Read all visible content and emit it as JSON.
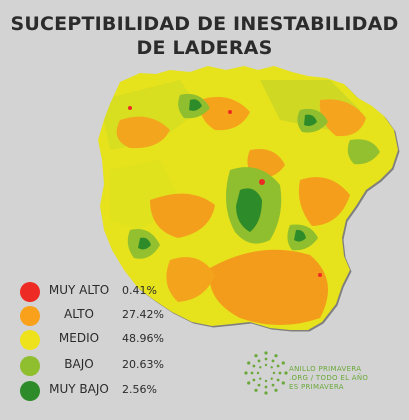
{
  "title": {
    "line1": "SUCEPTIBILIDAD DE INESTABILIDAD",
    "line2": "DE LADERAS"
  },
  "legend": [
    {
      "label": "MUY ALTO",
      "percent": "0.41%",
      "color": "#ee2a24"
    },
    {
      "label": "ALTO",
      "percent": "27.42%",
      "color": "#f9a11b"
    },
    {
      "label": "MEDIO",
      "percent": "48.96%",
      "color": "#ede21c"
    },
    {
      "label": "BAJO",
      "percent": "20.63%",
      "color": "#8fbe2e"
    },
    {
      "label": "MUY BAJO",
      "percent": "2.56%",
      "color": "#2e8b2a"
    }
  ],
  "branding": {
    "line1": "ANILLO PRIMAVERA",
    "line2": ".ORG / TODO EL AÑO",
    "line3": "ES PRIMAVERA",
    "color": "#6aa83a"
  }
}
